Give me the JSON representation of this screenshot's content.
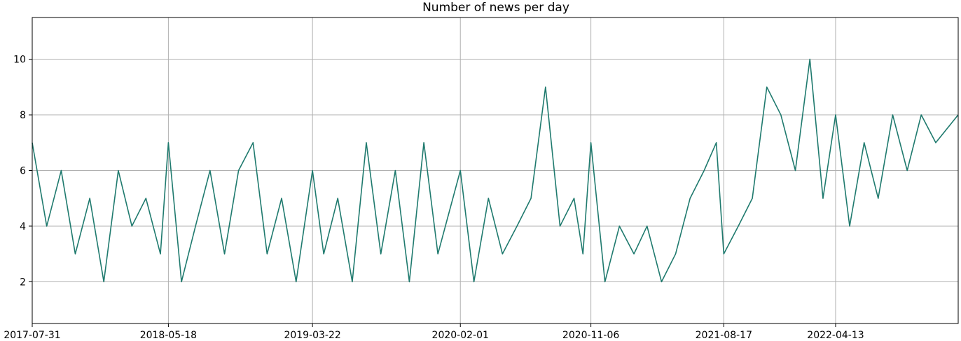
{
  "chart_data": {
    "type": "line",
    "title": "Number of news per day",
    "xlabel": "",
    "ylabel": "",
    "x_start": "2017-07-31",
    "x_end": "2022-12-31",
    "xlim": [
      "2017-07-31",
      "2022-12-31"
    ],
    "x_ticks": [
      "2017-07-31",
      "2018-05-18",
      "2019-03-22",
      "2020-02-01",
      "2020-11-06",
      "2021-08-17",
      "2022-04-13"
    ],
    "ylim": [
      0.5,
      11.5
    ],
    "y_ticks": [
      2,
      4,
      6,
      8,
      10
    ],
    "y_tick_labels": [
      "2",
      "4",
      "6",
      "8",
      "10"
    ],
    "grid": true,
    "colors": {
      "series": "#1f7a6e"
    },
    "series": [
      {
        "name": "",
        "x": [
          "2017-07-31",
          "2017-08-31",
          "2017-10-01",
          "2017-10-31",
          "2017-12-01",
          "2017-12-31",
          "2018-01-31",
          "2018-03-01",
          "2018-03-31",
          "2018-05-01",
          "2018-05-18",
          "2018-06-15",
          "2018-07-15",
          "2018-08-15",
          "2018-09-15",
          "2018-10-15",
          "2018-11-15",
          "2018-12-15",
          "2019-01-15",
          "2019-02-15",
          "2019-03-22",
          "2019-04-15",
          "2019-05-15",
          "2019-06-15",
          "2019-07-15",
          "2019-08-15",
          "2019-09-15",
          "2019-10-15",
          "2019-11-15",
          "2019-12-15",
          "2020-02-01",
          "2020-03-01",
          "2020-04-01",
          "2020-05-01",
          "2020-06-01",
          "2020-07-01",
          "2020-08-01",
          "2020-09-01",
          "2020-10-01",
          "2020-10-20",
          "2020-11-06",
          "2020-12-06",
          "2021-01-06",
          "2021-02-06",
          "2021-03-06",
          "2021-04-06",
          "2021-05-06",
          "2021-06-06",
          "2021-07-06",
          "2021-08-01",
          "2021-08-17",
          "2021-09-17",
          "2021-10-17",
          "2021-11-17",
          "2021-12-17",
          "2022-01-17",
          "2022-02-17",
          "2022-03-17",
          "2022-04-13",
          "2022-05-13",
          "2022-06-13",
          "2022-07-13",
          "2022-08-13",
          "2022-09-13",
          "2022-10-13",
          "2022-11-13",
          "2022-12-31"
        ],
        "values": [
          7,
          4,
          6,
          3,
          5,
          2,
          6,
          4,
          5,
          3,
          7,
          2,
          4,
          6,
          3,
          6,
          7,
          3,
          5,
          2,
          6,
          3,
          5,
          2,
          7,
          3,
          6,
          2,
          7,
          3,
          6,
          2,
          5,
          3,
          4,
          5,
          9,
          4,
          5,
          3,
          7,
          2,
          4,
          3,
          4,
          2,
          3,
          5,
          6,
          7,
          3,
          4,
          5,
          9,
          8,
          6,
          10,
          5,
          8,
          4,
          7,
          5,
          8,
          6,
          8,
          7,
          8
        ]
      }
    ]
  }
}
